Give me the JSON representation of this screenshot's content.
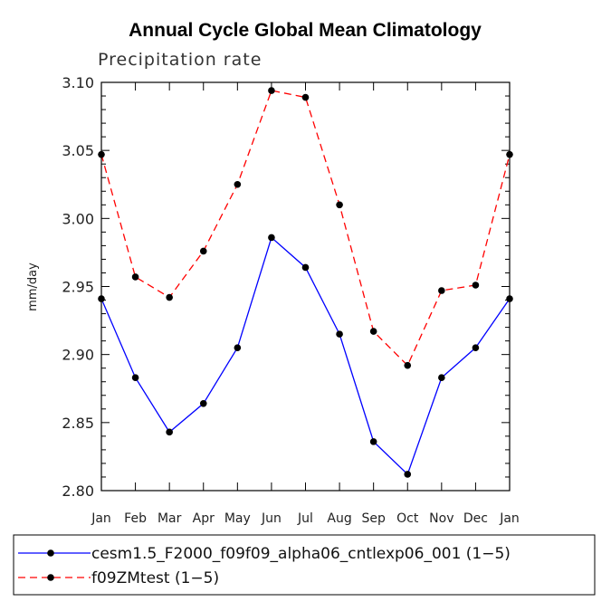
{
  "chart_data": {
    "type": "line",
    "title": "Annual Cycle Global Mean Climatology",
    "subtitle": "Precipitation rate",
    "xlabel": "",
    "ylabel": "mm/day",
    "ylim": [
      2.8,
      3.1
    ],
    "yticks": [
      "2.80",
      "2.85",
      "2.90",
      "2.95",
      "3.00",
      "3.05",
      "3.10"
    ],
    "categories": [
      "Jan",
      "Feb",
      "Mar",
      "Apr",
      "May",
      "Jun",
      "Jul",
      "Aug",
      "Sep",
      "Oct",
      "Nov",
      "Dec",
      "Jan"
    ],
    "series": [
      {
        "name": "cesm1.5_F2000_f09f09_alpha06_cntlexp06_001 (1-5)",
        "color": "#0000ff",
        "dash": "solid",
        "values": [
          2.941,
          2.883,
          2.843,
          2.864,
          2.905,
          2.986,
          2.964,
          2.915,
          2.836,
          2.812,
          2.883,
          2.905,
          2.941
        ]
      },
      {
        "name": "f09ZMtest (1-5)",
        "color": "#ff0000",
        "dash": "dashed",
        "values": [
          3.047,
          2.957,
          2.942,
          2.976,
          3.025,
          3.094,
          3.089,
          3.01,
          2.917,
          2.892,
          2.947,
          2.951,
          3.047
        ]
      }
    ],
    "legend_position": "bottom"
  },
  "legend": {
    "entries": [
      "cesm1.5_F2000_f09f09_alpha06_cntlexp06_001 (1−5)",
      "f09ZMtest (1−5)"
    ]
  },
  "colors": {
    "series1": "#0000ff",
    "series2": "#ff0000",
    "marker": "#000000"
  }
}
